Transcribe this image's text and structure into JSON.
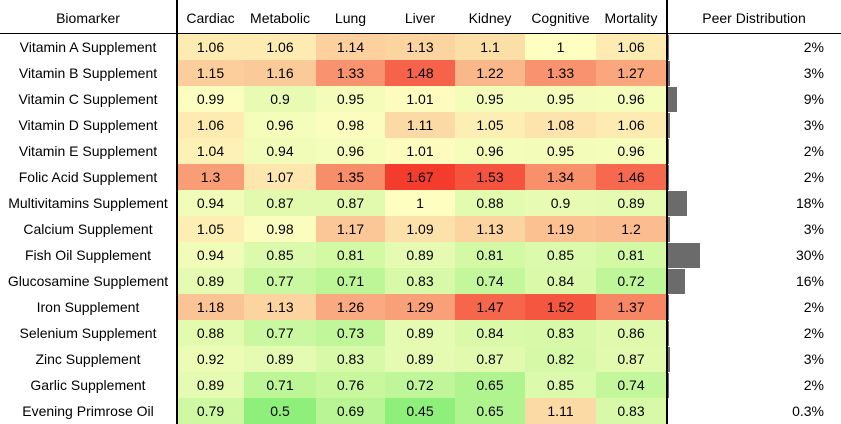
{
  "chart_data": {
    "type": "heatmap",
    "row_header": "Biomarker",
    "columns": [
      "Cardiac",
      "Metabolic",
      "Lung",
      "Liver",
      "Kidney",
      "Cognitive",
      "Mortality"
    ],
    "distribution_header": "Peer Distribution",
    "color_scale": {
      "low": "#8ef07a",
      "mid": "#fefec0",
      "high": "#f43c2c",
      "low_value": 0.5,
      "mid_value": 1.0,
      "high_value": 1.6
    },
    "bar_color": "#6b6b6b",
    "rows": [
      {
        "label": "Vitamin A Supplement",
        "values": [
          1.06,
          1.06,
          1.14,
          1.13,
          1.1,
          1,
          1.06
        ],
        "texts": [
          "1.06",
          "1.06",
          "1.14",
          "1.13",
          "1.1",
          "1",
          "1.06"
        ],
        "share": 2,
        "share_text": "2%"
      },
      {
        "label": "Vitamin B Supplement",
        "values": [
          1.15,
          1.16,
          1.33,
          1.48,
          1.22,
          1.33,
          1.27
        ],
        "texts": [
          "1.15",
          "1.16",
          "1.33",
          "1.48",
          "1.22",
          "1.33",
          "1.27"
        ],
        "share": 3,
        "share_text": "3%"
      },
      {
        "label": "Vitamin C Supplement",
        "values": [
          0.99,
          0.9,
          0.95,
          1.01,
          0.95,
          0.95,
          0.96
        ],
        "texts": [
          "0.99",
          "0.9",
          "0.95",
          "1.01",
          "0.95",
          "0.95",
          "0.96"
        ],
        "share": 9,
        "share_text": "9%"
      },
      {
        "label": "Vitamin D Supplement",
        "values": [
          1.06,
          0.96,
          0.98,
          1.11,
          1.05,
          1.08,
          1.06
        ],
        "texts": [
          "1.06",
          "0.96",
          "0.98",
          "1.11",
          "1.05",
          "1.08",
          "1.06"
        ],
        "share": 3,
        "share_text": "3%"
      },
      {
        "label": "Vitamin E Supplement",
        "values": [
          1.04,
          0.94,
          0.96,
          1.01,
          0.96,
          0.95,
          0.96
        ],
        "texts": [
          "1.04",
          "0.94",
          "0.96",
          "1.01",
          "0.96",
          "0.95",
          "0.96"
        ],
        "share": 2,
        "share_text": "2%"
      },
      {
        "label": "Folic Acid Supplement",
        "values": [
          1.3,
          1.07,
          1.35,
          1.67,
          1.53,
          1.34,
          1.46
        ],
        "texts": [
          "1.3",
          "1.07",
          "1.35",
          "1.67",
          "1.53",
          "1.34",
          "1.46"
        ],
        "share": 2,
        "share_text": "2%"
      },
      {
        "label": "Multivitamins Supplement",
        "values": [
          0.94,
          0.87,
          0.87,
          1,
          0.88,
          0.9,
          0.89
        ],
        "texts": [
          "0.94",
          "0.87",
          "0.87",
          "1",
          "0.88",
          "0.9",
          "0.89"
        ],
        "share": 18,
        "share_text": "18%"
      },
      {
        "label": "Calcium Supplement",
        "values": [
          1.05,
          0.98,
          1.17,
          1.09,
          1.13,
          1.19,
          1.2
        ],
        "texts": [
          "1.05",
          "0.98",
          "1.17",
          "1.09",
          "1.13",
          "1.19",
          "1.2"
        ],
        "share": 3,
        "share_text": "3%"
      },
      {
        "label": "Fish Oil Supplement",
        "values": [
          0.94,
          0.85,
          0.81,
          0.89,
          0.81,
          0.85,
          0.81
        ],
        "texts": [
          "0.94",
          "0.85",
          "0.81",
          "0.89",
          "0.81",
          "0.85",
          "0.81"
        ],
        "share": 30,
        "share_text": "30%"
      },
      {
        "label": "Glucosamine Supplement",
        "values": [
          0.89,
          0.77,
          0.71,
          0.83,
          0.74,
          0.84,
          0.72
        ],
        "texts": [
          "0.89",
          "0.77",
          "0.71",
          "0.83",
          "0.74",
          "0.84",
          "0.72"
        ],
        "share": 16,
        "share_text": "16%"
      },
      {
        "label": "Iron Supplement",
        "values": [
          1.18,
          1.13,
          1.26,
          1.29,
          1.47,
          1.52,
          1.37
        ],
        "texts": [
          "1.18",
          "1.13",
          "1.26",
          "1.29",
          "1.47",
          "1.52",
          "1.37"
        ],
        "share": 2,
        "share_text": "2%"
      },
      {
        "label": "Selenium Supplement",
        "values": [
          0.88,
          0.77,
          0.73,
          0.89,
          0.84,
          0.83,
          0.86
        ],
        "texts": [
          "0.88",
          "0.77",
          "0.73",
          "0.89",
          "0.84",
          "0.83",
          "0.86"
        ],
        "share": 2,
        "share_text": "2%"
      },
      {
        "label": "Zinc Supplement",
        "values": [
          0.92,
          0.89,
          0.83,
          0.89,
          0.87,
          0.82,
          0.87
        ],
        "texts": [
          "0.92",
          "0.89",
          "0.83",
          "0.89",
          "0.87",
          "0.82",
          "0.87"
        ],
        "share": 3,
        "share_text": "3%"
      },
      {
        "label": "Garlic Supplement",
        "values": [
          0.89,
          0.71,
          0.76,
          0.72,
          0.65,
          0.85,
          0.74
        ],
        "texts": [
          "0.89",
          "0.71",
          "0.76",
          "0.72",
          "0.65",
          "0.85",
          "0.74"
        ],
        "share": 2,
        "share_text": "2%"
      },
      {
        "label": "Evening Primrose Oil",
        "values": [
          0.79,
          0.5,
          0.69,
          0.45,
          0.65,
          1.11,
          0.83
        ],
        "texts": [
          "0.79",
          "0.5",
          "0.69",
          "0.45",
          "0.65",
          "1.11",
          "0.83"
        ],
        "share": 0.3,
        "share_text": "0.3%"
      }
    ]
  }
}
